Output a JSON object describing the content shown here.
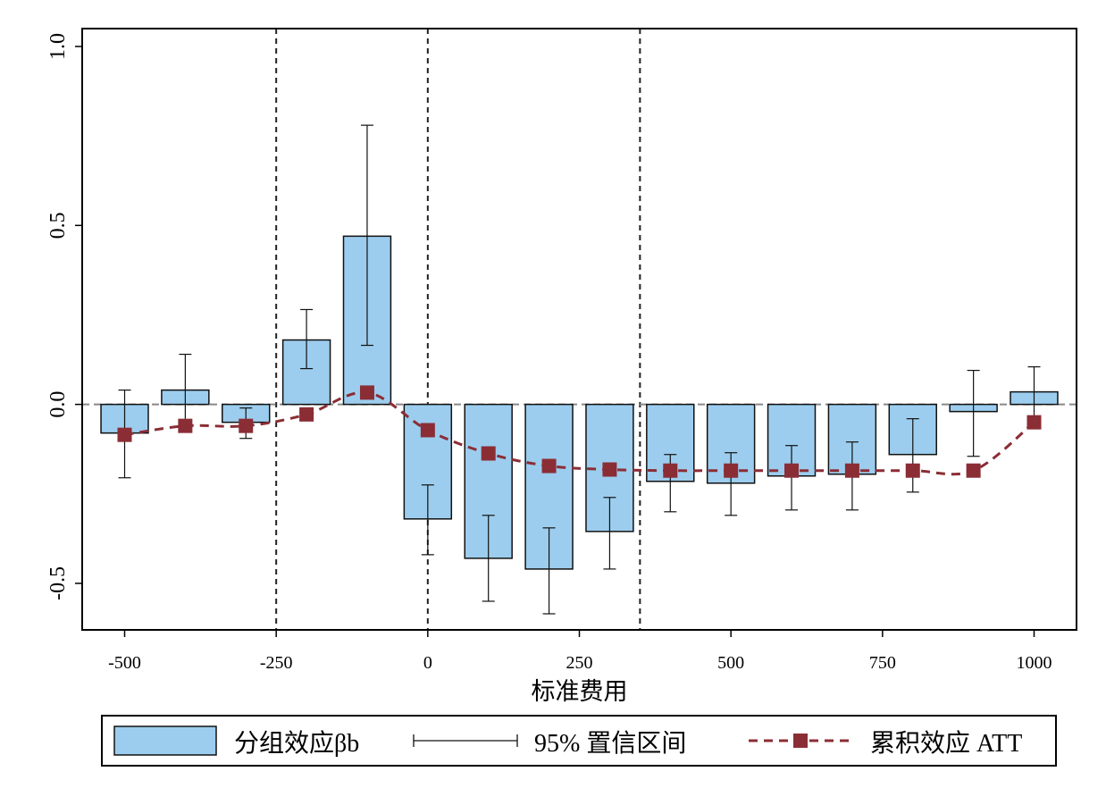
{
  "chart_data": {
    "type": "bar",
    "title": "",
    "xlabel": "标准费用",
    "ylabel": "",
    "xlim": [
      -570,
      1070
    ],
    "ylim": [
      -0.63,
      1.05
    ],
    "xticks": [
      -500,
      -250,
      0,
      250,
      500,
      750,
      1000
    ],
    "xtick_labels": [
      "-500",
      "-250",
      "0",
      "250",
      "500",
      "750",
      "1000"
    ],
    "yticks": [
      -0.5,
      0.0,
      0.5,
      1.0
    ],
    "ytick_labels": [
      "-0.5",
      "0.0",
      "0.5",
      "1.0"
    ],
    "reference_lines": {
      "vertical": [
        -250,
        0,
        350
      ],
      "horizontal": [
        0
      ]
    },
    "x": [
      -500,
      -400,
      -300,
      -200,
      -100,
      0,
      100,
      200,
      300,
      400,
      500,
      600,
      700,
      800,
      900,
      1000
    ],
    "bar_width": 78,
    "series": [
      {
        "name": "分组效应βb",
        "kind": "bar",
        "color": "#9ccdee",
        "values": [
          -0.08,
          0.04,
          -0.05,
          0.18,
          0.47,
          -0.32,
          -0.43,
          -0.46,
          -0.355,
          -0.215,
          -0.22,
          -0.2,
          -0.195,
          -0.14,
          -0.02,
          0.035
        ]
      },
      {
        "name": "95% 置信区间",
        "kind": "errorbar",
        "low": [
          -0.205,
          -0.06,
          -0.095,
          0.1,
          0.165,
          -0.42,
          -0.55,
          -0.585,
          -0.46,
          -0.3,
          -0.31,
          -0.295,
          -0.295,
          -0.245,
          -0.145,
          -0.035
        ],
        "high": [
          0.04,
          0.14,
          -0.01,
          0.265,
          0.78,
          -0.225,
          -0.31,
          -0.345,
          -0.26,
          -0.14,
          -0.135,
          -0.115,
          -0.105,
          -0.04,
          0.095,
          0.105
        ]
      },
      {
        "name": "累积效应 ATT",
        "kind": "line",
        "color": "#8b2d35",
        "values": [
          -0.085,
          -0.06,
          -0.06,
          -0.028,
          0.033,
          -0.072,
          -0.137,
          -0.172,
          -0.182,
          -0.185,
          -0.185,
          -0.185,
          -0.185,
          -0.185,
          -0.185,
          -0.05
        ]
      }
    ],
    "legend": {
      "placement": "bottom",
      "items": [
        "分组效应βb",
        "95% 置信区间",
        "累积效应 ATT"
      ]
    }
  }
}
